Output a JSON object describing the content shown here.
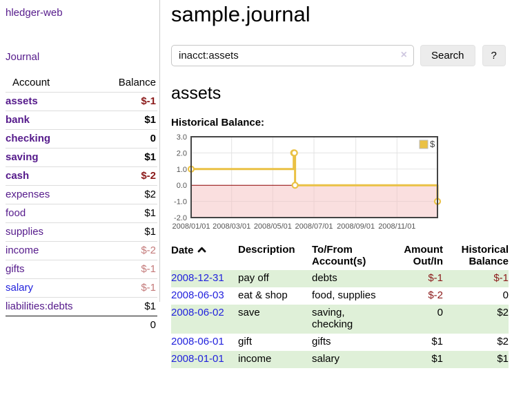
{
  "sidebar": {
    "brand": "hledger-web",
    "nav": {
      "journal": "Journal"
    },
    "accounts_table": {
      "headers": {
        "account": "Account",
        "balance": "Balance"
      },
      "rows": [
        {
          "name": "assets",
          "depth": 1,
          "bold": true,
          "balance": "$-1",
          "balance_tone": "negative-strong"
        },
        {
          "name": "bank",
          "depth": 2,
          "bold": true,
          "balance": "$1",
          "balance_tone": "normal"
        },
        {
          "name": "checking",
          "depth": 3,
          "bold": true,
          "balance": "0",
          "balance_tone": "normal"
        },
        {
          "name": "saving",
          "depth": 3,
          "bold": true,
          "balance": "$1",
          "balance_tone": "normal"
        },
        {
          "name": "cash",
          "depth": 2,
          "bold": true,
          "balance": "$-2",
          "balance_tone": "negative-strong"
        },
        {
          "name": "expenses",
          "depth": 1,
          "bold": false,
          "balance": "$2",
          "balance_tone": "normal"
        },
        {
          "name": "food",
          "depth": 2,
          "bold": false,
          "balance": "$1",
          "balance_tone": "normal"
        },
        {
          "name": "supplies",
          "depth": 2,
          "bold": false,
          "balance": "$1",
          "balance_tone": "normal"
        },
        {
          "name": "income",
          "depth": 1,
          "bold": false,
          "balance": "$-2",
          "balance_tone": "negative-soft"
        },
        {
          "name": "gifts",
          "depth": 2,
          "bold": false,
          "balance": "$-1",
          "balance_tone": "negative-soft"
        },
        {
          "name": "salary",
          "depth": 2,
          "bold": false,
          "balance": "$-1",
          "balance_tone": "negative-soft",
          "link_color": "blue"
        },
        {
          "name": "liabilities:debts",
          "depth": 1,
          "bold": false,
          "balance": "$1",
          "balance_tone": "normal"
        }
      ],
      "total": "0"
    }
  },
  "header": {
    "title": "sample.journal"
  },
  "search": {
    "query": "inacct:assets",
    "clear_icon": "×",
    "button": "Search",
    "help_button": "?"
  },
  "account_heading": "assets",
  "chart_heading": "Historical Balance:",
  "chart_data": {
    "type": "line",
    "style": "step",
    "title": "Historical Balance:",
    "series": [
      {
        "name": "$",
        "color": "#eac144",
        "points": [
          [
            "2008-01-01",
            1
          ],
          [
            "2008-06-01",
            2
          ],
          [
            "2008-06-02",
            2
          ],
          [
            "2008-06-03",
            0
          ],
          [
            "2008-12-31",
            -1
          ]
        ]
      }
    ],
    "x_range": [
      "2008-01-01",
      "2008-12-31"
    ],
    "ylim": [
      -2,
      3
    ],
    "y_ticks": [
      3.0,
      2.0,
      1.0,
      0.0,
      -1.0,
      -2.0
    ],
    "x_ticks": [
      {
        "date": "2008-01-01",
        "label": "2008/01/01"
      },
      {
        "date": "2008-03-01",
        "label": "2008/03/01"
      },
      {
        "date": "2008-05-01",
        "label": "2008/05/01"
      },
      {
        "date": "2008-07-01",
        "label": "2008/07/01"
      },
      {
        "date": "2008-09-01",
        "label": "2008/09/01"
      },
      {
        "date": "2008-11-01",
        "label": "2008/11/01"
      }
    ],
    "legend": {
      "label": "$",
      "position": "top-right"
    },
    "grid": true,
    "colors": {
      "grid": "#e3e3e3",
      "border": "#444444",
      "zero_line": "#8b0000",
      "negative_region": "rgba(246,192,192,0.5)",
      "marker_fill": "#ffffff"
    }
  },
  "register": {
    "headers": {
      "date": "Date",
      "sort_icon": "chevron-up",
      "description": "Description",
      "accounts": "To/From\nAccount(s)",
      "amount": "Amount\nOut/In",
      "balance": "Historical\nBalance"
    },
    "rows": [
      {
        "date": "2008-12-31",
        "description": "pay off",
        "accounts": "debts",
        "amount": "$-1",
        "balance": "$-1",
        "amount_negative": true,
        "balance_negative": true,
        "stripe": true
      },
      {
        "date": "2008-06-03",
        "description": "eat & shop",
        "accounts": "food, supplies",
        "amount": "$-2",
        "balance": "0",
        "amount_negative": true,
        "balance_negative": false,
        "stripe": false
      },
      {
        "date": "2008-06-02",
        "description": "save",
        "accounts": "saving,\nchecking",
        "amount": "0",
        "balance": "$2",
        "amount_negative": false,
        "balance_negative": false,
        "stripe": true
      },
      {
        "date": "2008-06-01",
        "description": "gift",
        "accounts": "gifts",
        "amount": "$1",
        "balance": "$2",
        "amount_negative": false,
        "balance_negative": false,
        "stripe": false
      },
      {
        "date": "2008-01-01",
        "description": "income",
        "accounts": "salary",
        "amount": "$1",
        "balance": "$1",
        "amount_negative": false,
        "balance_negative": false,
        "stripe": true
      }
    ]
  },
  "colors": {
    "link_purple": "#551a8b",
    "link_blue": "#2222dd",
    "negative_strong": "#8b1a1a",
    "negative_soft": "#c47a7a",
    "row_stripe_green": "#dff0d8",
    "series_gold": "#eac144"
  }
}
